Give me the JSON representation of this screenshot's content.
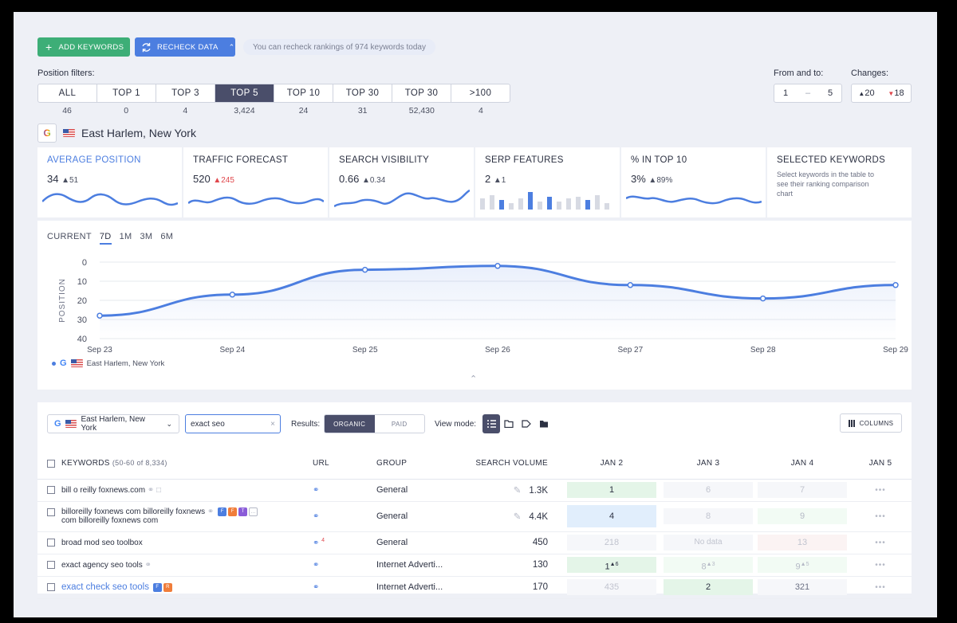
{
  "toolbar": {
    "add_keywords": "ADD KEYWORDS",
    "recheck_data": "RECHECK DATA",
    "recheck_note": "You can recheck rankings of 974 keywords today"
  },
  "filters": {
    "label": "Position filters:",
    "items": [
      {
        "label": "ALL",
        "count": "46"
      },
      {
        "label": "TOP 1",
        "count": "0"
      },
      {
        "label": "TOP 3",
        "count": "4"
      },
      {
        "label": "TOP 5",
        "count": "3,424"
      },
      {
        "label": "TOP 10",
        "count": "24"
      },
      {
        "label": "TOP 30",
        "count": "31"
      },
      {
        "label": "TOP 30",
        "count": "52,430"
      },
      {
        "label": ">100",
        "count": "4"
      }
    ],
    "active": "TOP 5"
  },
  "range": {
    "label": "From and to:",
    "from": "1",
    "sep": "–",
    "to": "5"
  },
  "changes": {
    "label": "Changes:",
    "up": "20",
    "down": "18"
  },
  "location": {
    "name": "East Harlem, New York"
  },
  "metrics": [
    {
      "title": "AVERAGE POSITION",
      "value": "34",
      "delta": "51",
      "delta_color": "gray"
    },
    {
      "title": "TRAFFIC FORECAST",
      "value": "520",
      "delta": "245",
      "delta_color": "red"
    },
    {
      "title": "SEARCH VISIBILITY",
      "value": "0.66",
      "delta": "0.34",
      "delta_color": "gray"
    },
    {
      "title": "SERP FEATURES",
      "value": "2",
      "delta": "1",
      "delta_color": "gray"
    },
    {
      "title": "% IN TOP 10",
      "value": "3%",
      "delta": "89%",
      "delta_color": "gray"
    },
    {
      "title": "SELECTED KEYWORDS",
      "description": "Select keywords in the table to see their ranking comparison chart"
    }
  ],
  "periods": [
    "CURRENT",
    "7D",
    "1M",
    "3M",
    "6M"
  ],
  "chart_data": {
    "type": "line",
    "ylabel": "POSITION",
    "y_ticks": [
      0,
      10,
      20,
      30,
      40
    ],
    "ylim": [
      0,
      40
    ],
    "y_inverted": true,
    "categories": [
      "Sep 23",
      "Sep 24",
      "Sep 25",
      "Sep 26",
      "Sep 27",
      "Sep 28",
      "Sep 29"
    ],
    "series": [
      {
        "name": "East Harlem, New York",
        "values": [
          28,
          17,
          4,
          2,
          12,
          19,
          12
        ],
        "color": "#4c7ee0"
      }
    ]
  },
  "table_toolbar": {
    "location": "East Harlem, New York",
    "search_value": "exact seo",
    "results_label": "Results:",
    "organic": "ORGANIC",
    "paid": "PAID",
    "view_mode_label": "View mode:",
    "columns": "COLUMNS"
  },
  "table": {
    "headers": {
      "keywords": "KEYWORDS",
      "range": "(50-60 of 8,334)",
      "url": "URL",
      "group": "GROUP",
      "volume": "SEARCH VOLUME",
      "d1": "JAN 2",
      "d2": "JAN 3",
      "d3": "JAN 4",
      "d4": "JAN 5"
    },
    "rows": [
      {
        "keyword": "bill o reilly foxnews.com",
        "group": "General",
        "volume": "1.3K",
        "d1": "1",
        "d2": "6",
        "d3": "7",
        "d4": "•••"
      },
      {
        "keyword": "billoreilly foxnews com billoreilly foxnews",
        "keyword2": "com billoreilly foxnews com",
        "group": "General",
        "volume": "4.4K",
        "d1": "4",
        "d2": "8",
        "d3": "9",
        "d4": "•••"
      },
      {
        "keyword": "broad mod seo toolbox",
        "url_badge": "4",
        "group": "General",
        "volume": "450",
        "d1": "218",
        "d2": "No data",
        "d3": "13",
        "d4": "•••"
      },
      {
        "keyword": "exact agency seo tools",
        "group": "Internet Adverti...",
        "volume": "130",
        "d1": "1",
        "d1_up": "6",
        "d2": "8",
        "d2_up": "3",
        "d3": "9",
        "d3_up": "5",
        "d4": "•••"
      },
      {
        "keyword": "exact check seo tools",
        "group": "Internet Adverti...",
        "volume": "170",
        "d1": "435",
        "d2": "2",
        "d3": "321",
        "d4": "•••"
      }
    ]
  }
}
